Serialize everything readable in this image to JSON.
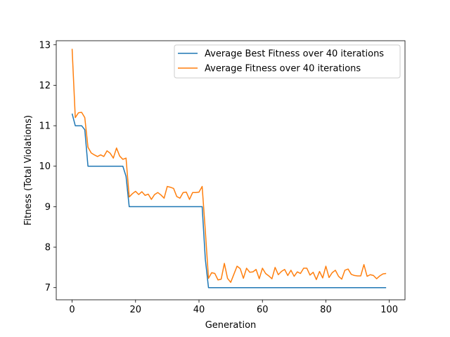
{
  "chart_data": {
    "type": "line",
    "title": "",
    "xlabel": "Generation",
    "ylabel": "Fitness (Total Violations)",
    "xlim": [
      -5,
      104.95
    ],
    "ylim": [
      6.7,
      13.1
    ],
    "xticks": [
      0,
      20,
      40,
      60,
      80,
      100
    ],
    "yticks": [
      7,
      8,
      9,
      10,
      11,
      12,
      13
    ],
    "grid": false,
    "legend_position": "top-right",
    "x": [
      0,
      1,
      2,
      3,
      4,
      5,
      6,
      7,
      8,
      9,
      10,
      11,
      12,
      13,
      14,
      15,
      16,
      17,
      18,
      19,
      20,
      21,
      22,
      23,
      24,
      25,
      26,
      27,
      28,
      29,
      30,
      31,
      32,
      33,
      34,
      35,
      36,
      37,
      38,
      39,
      40,
      41,
      42,
      43,
      44,
      45,
      46,
      47,
      48,
      49,
      50,
      51,
      52,
      53,
      54,
      55,
      56,
      57,
      58,
      59,
      60,
      61,
      62,
      63,
      64,
      65,
      66,
      67,
      68,
      69,
      70,
      71,
      72,
      73,
      74,
      75,
      76,
      77,
      78,
      79,
      80,
      81,
      82,
      83,
      84,
      85,
      86,
      87,
      88,
      89,
      90,
      91,
      92,
      93,
      94,
      95,
      96,
      97,
      98,
      99
    ],
    "series": [
      {
        "name": "Average Best Fitness over 40 iterations",
        "color": "#1f77b4",
        "values": [
          11.3,
          11.0,
          11.0,
          11.0,
          10.9,
          10.0,
          10.0,
          10.0,
          10.0,
          10.0,
          10.0,
          10.0,
          10.0,
          10.0,
          10.0,
          10.0,
          10.0,
          9.75,
          9.0,
          9.0,
          9.0,
          9.0,
          9.0,
          9.0,
          9.0,
          9.0,
          9.0,
          9.0,
          9.0,
          9.0,
          9.0,
          9.0,
          9.0,
          9.0,
          9.0,
          9.0,
          9.0,
          9.0,
          9.0,
          9.0,
          9.0,
          9.0,
          7.7,
          7.0,
          7.0,
          7.0,
          7.0,
          7.0,
          7.0,
          7.0,
          7.0,
          7.0,
          7.0,
          7.0,
          7.0,
          7.0,
          7.0,
          7.0,
          7.0,
          7.0,
          7.0,
          7.0,
          7.0,
          7.0,
          7.0,
          7.0,
          7.0,
          7.0,
          7.0,
          7.0,
          7.0,
          7.0,
          7.0,
          7.0,
          7.0,
          7.0,
          7.0,
          7.0,
          7.0,
          7.0,
          7.0,
          7.0,
          7.0,
          7.0,
          7.0,
          7.0,
          7.0,
          7.0,
          7.0,
          7.0,
          7.0,
          7.0,
          7.0,
          7.0,
          7.0,
          7.0,
          7.0,
          7.0,
          7.0,
          7.0
        ]
      },
      {
        "name": "Average Fitness over 40 iterations",
        "color": "#ff7f0e",
        "values": [
          12.9,
          11.2,
          11.32,
          11.33,
          11.2,
          10.47,
          10.33,
          10.28,
          10.24,
          10.28,
          10.24,
          10.38,
          10.32,
          10.2,
          10.45,
          10.25,
          10.17,
          10.2,
          9.24,
          9.32,
          9.38,
          9.3,
          9.37,
          9.28,
          9.31,
          9.18,
          9.3,
          9.35,
          9.29,
          9.21,
          9.5,
          9.48,
          9.45,
          9.25,
          9.21,
          9.35,
          9.36,
          9.18,
          9.35,
          9.35,
          9.36,
          9.5,
          8.4,
          7.23,
          7.37,
          7.35,
          7.19,
          7.21,
          7.6,
          7.23,
          7.13,
          7.33,
          7.53,
          7.47,
          7.23,
          7.48,
          7.38,
          7.39,
          7.45,
          7.22,
          7.48,
          7.35,
          7.29,
          7.22,
          7.5,
          7.32,
          7.4,
          7.45,
          7.3,
          7.43,
          7.28,
          7.39,
          7.35,
          7.48,
          7.48,
          7.31,
          7.38,
          7.2,
          7.4,
          7.24,
          7.53,
          7.25,
          7.37,
          7.43,
          7.28,
          7.21,
          7.43,
          7.46,
          7.33,
          7.3,
          7.29,
          7.29,
          7.57,
          7.28,
          7.32,
          7.3,
          7.22,
          7.29,
          7.34,
          7.35
        ]
      }
    ]
  }
}
